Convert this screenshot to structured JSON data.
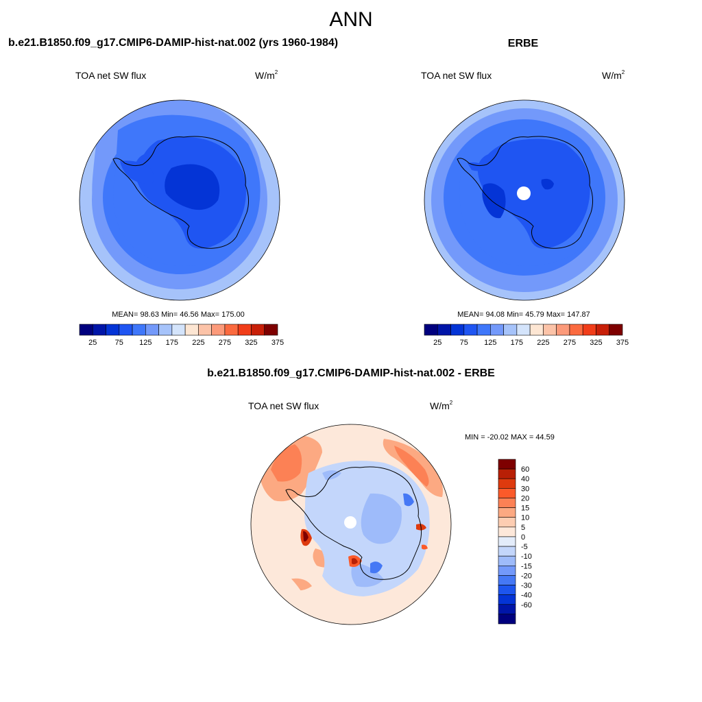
{
  "main_title": "ANN",
  "panels": [
    {
      "title": "b.e21.B1850.f09_g17.CMIP6-DAMIP-hist-nat.002 (yrs 1960-1984)",
      "variable": "TOA net SW flux",
      "units_base": "W/m",
      "units_exp": "2",
      "stats": "MEAN=  98.63  Min=  46.56  Max= 175.00",
      "colorbar": {
        "colors": [
          "#00007e",
          "#0015a8",
          "#0434d6",
          "#1f55f2",
          "#3f77fa",
          "#7399fa",
          "#a6c3fa",
          "#d4e4fb",
          "#fde6d3",
          "#fcc3a8",
          "#fc9a7a",
          "#fb6a3f",
          "#f13d19",
          "#c81f08",
          "#7e0000"
        ],
        "tick_labels": [
          "25",
          "75",
          "125",
          "175",
          "225",
          "275",
          "325",
          "375"
        ]
      }
    },
    {
      "title": "ERBE",
      "variable": "TOA net SW flux",
      "units_base": "W/m",
      "units_exp": "2",
      "stats": "MEAN=  94.08  Min=  45.79  Max= 147.87",
      "colorbar": {
        "colors": [
          "#00007e",
          "#0015a8",
          "#0434d6",
          "#1f55f2",
          "#3f77fa",
          "#7399fa",
          "#a6c3fa",
          "#d4e4fb",
          "#fde6d3",
          "#fcc3a8",
          "#fc9a7a",
          "#fb6a3f",
          "#f13d19",
          "#c81f08",
          "#7e0000"
        ],
        "tick_labels": [
          "25",
          "75",
          "125",
          "175",
          "225",
          "275",
          "325",
          "375"
        ]
      }
    },
    {
      "title": "b.e21.B1850.f09_g17.CMIP6-DAMIP-hist-nat.002 - ERBE",
      "variable": "TOA net SW flux",
      "units_base": "W/m",
      "units_exp": "2",
      "stats": "MIN = -20.02 MAX =  44.59",
      "colorbar": {
        "colors": [
          "#7e0000",
          "#b81f05",
          "#de3a0e",
          "#fb5a2a",
          "#fc8155",
          "#fca982",
          "#fdcdb2",
          "#fde8da",
          "#e3ecfa",
          "#c3d6fb",
          "#9ebbfa",
          "#7399fa",
          "#4578f5",
          "#1d55ee",
          "#0434d6",
          "#0015a8",
          "#00007e"
        ],
        "tick_labels": [
          "60",
          "40",
          "30",
          "20",
          "15",
          "10",
          "5",
          "0",
          "-5",
          "-10",
          "-15",
          "-20",
          "-30",
          "-40",
          "-60"
        ]
      }
    }
  ]
}
